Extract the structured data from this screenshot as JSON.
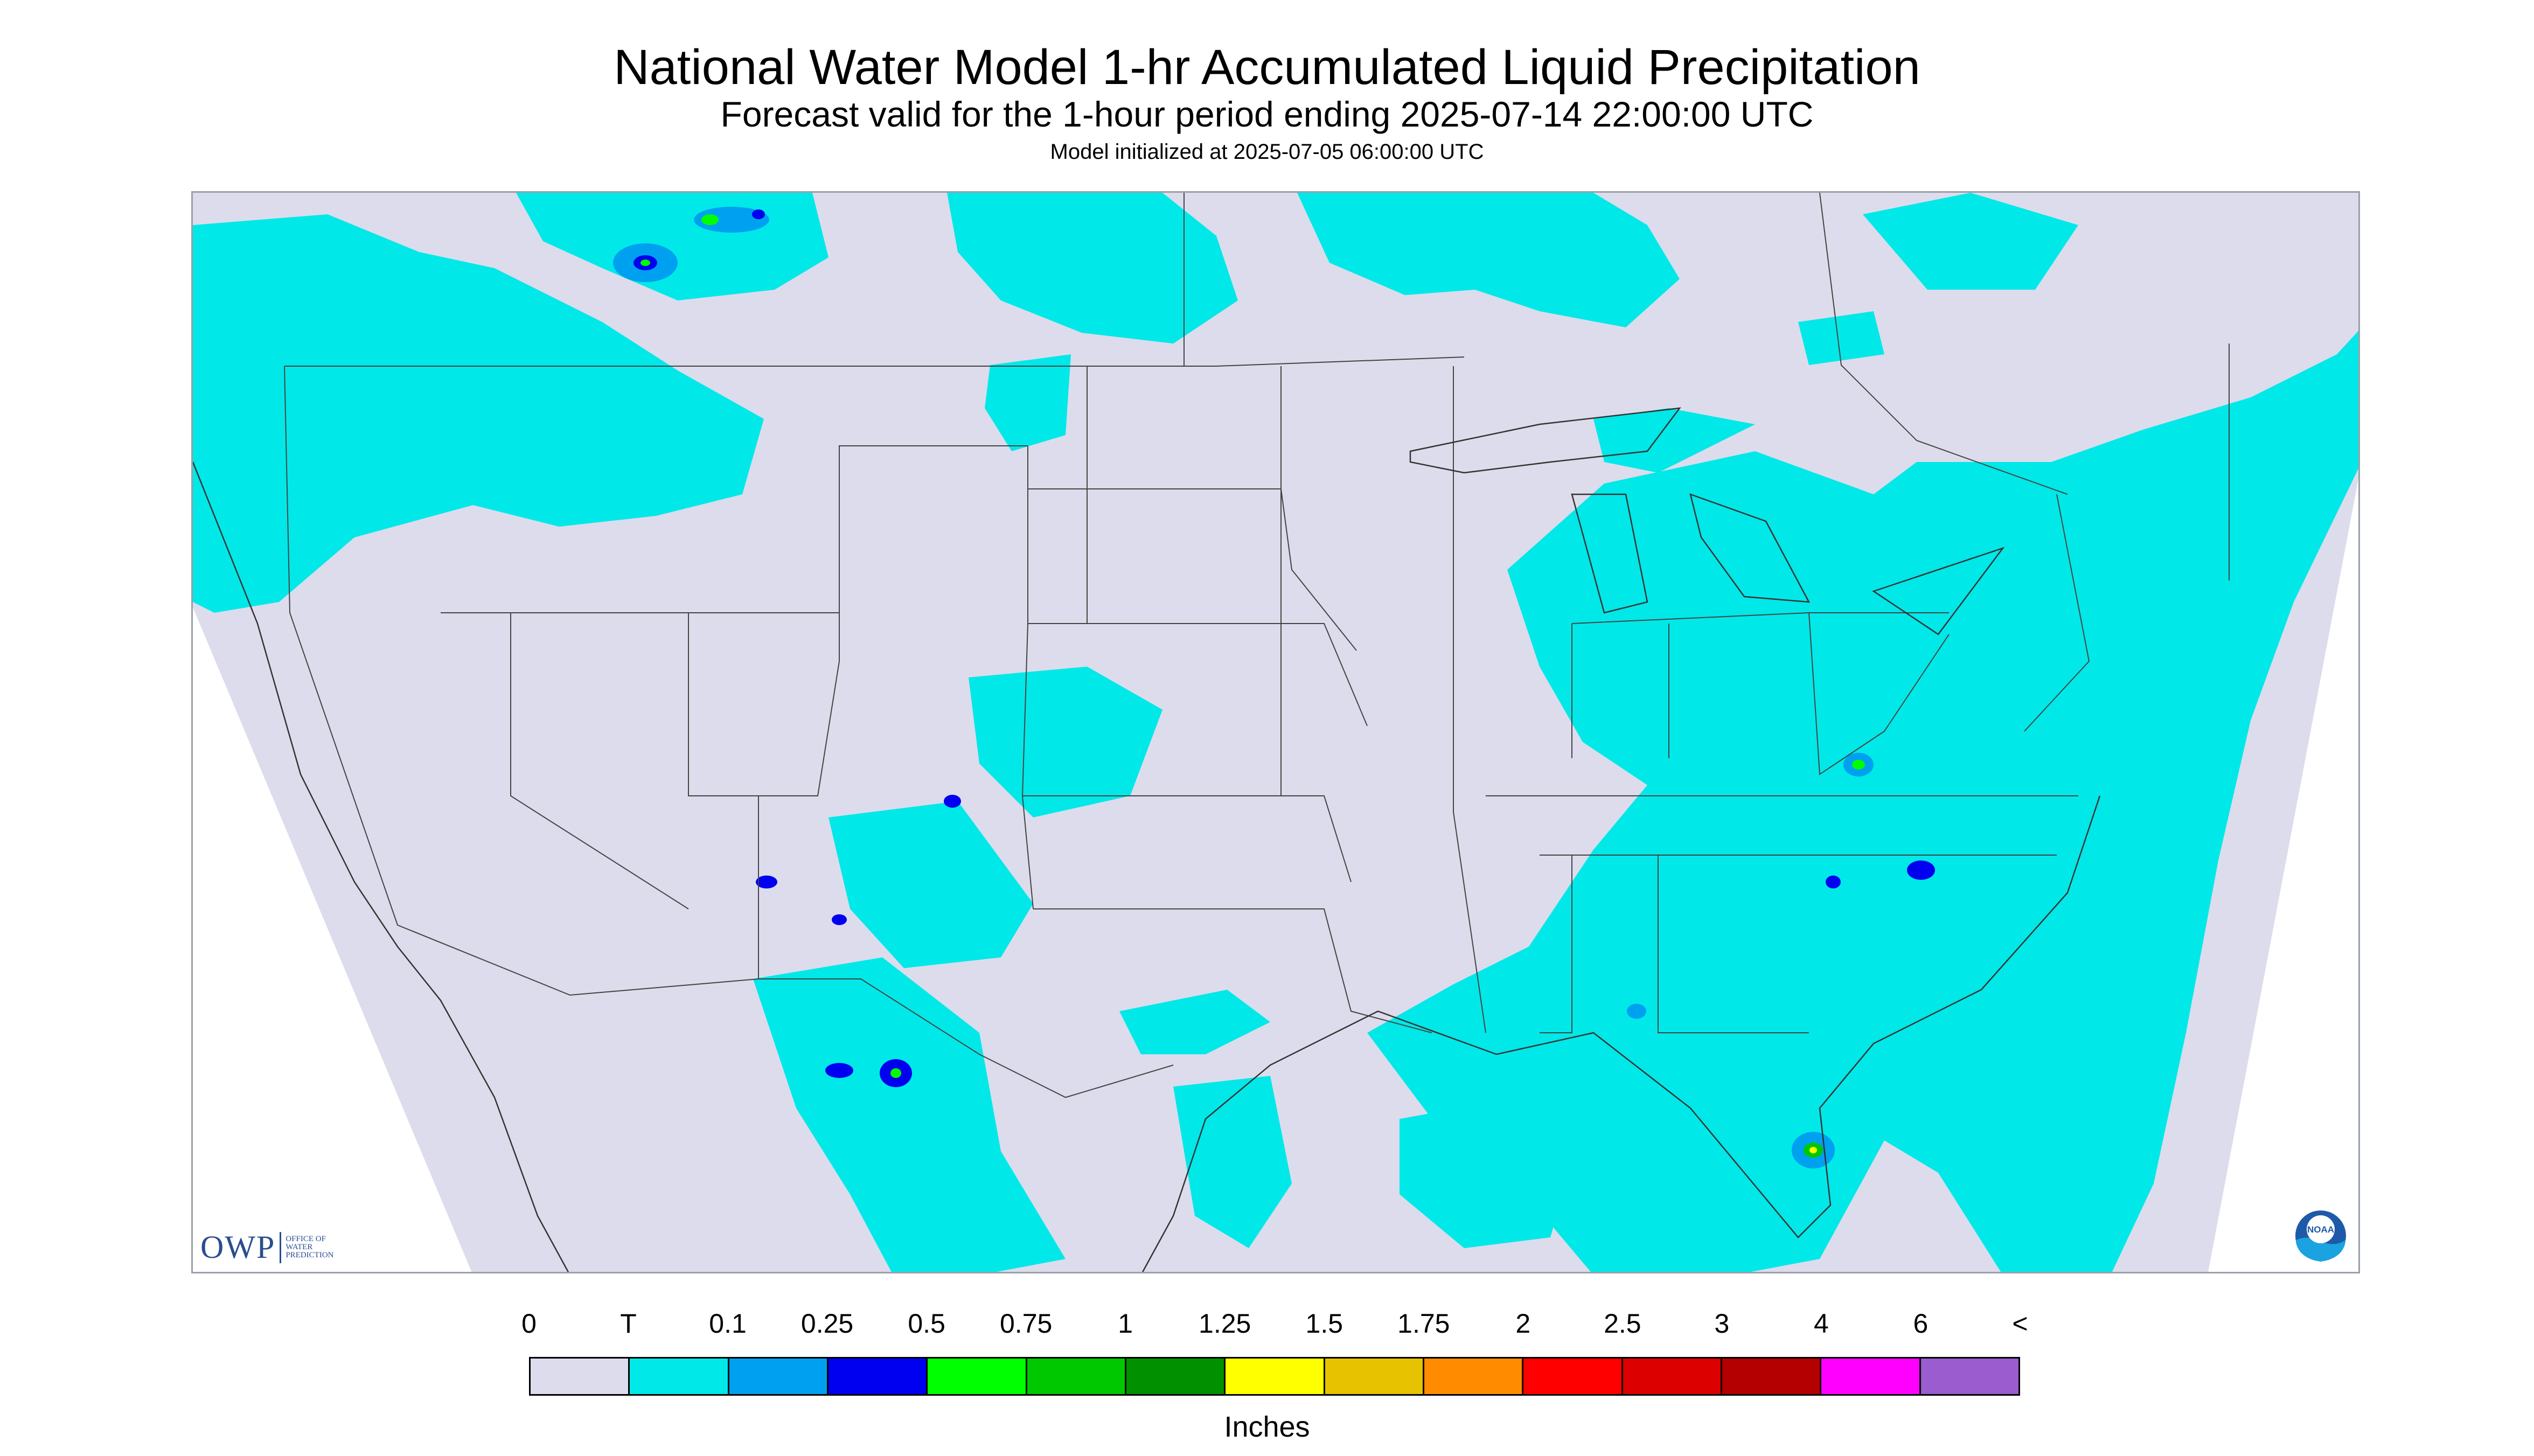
{
  "header": {
    "title": "National Water Model 1-hr Accumulated Liquid Precipitation",
    "subtitle": "Forecast valid for the 1-hour period ending 2025-07-14 22:00:00 UTC",
    "init": "Model initialized at 2025-07-05 06:00:00 UTC"
  },
  "map": {
    "region": "Continental United States",
    "background_color": "#dcdcec",
    "light_precip_color": "#00e8e8",
    "heavy_cells": [
      {
        "location": "Southern Alberta",
        "level": "0.5"
      },
      {
        "location": "Virginia",
        "level": "0.5"
      },
      {
        "location": "North Carolina coast",
        "level": "0.5"
      },
      {
        "location": "Southeast Florida",
        "level": "0.75"
      },
      {
        "location": "Northern Mexico (Sonora)",
        "level": "0.5"
      },
      {
        "location": "Colorado",
        "level": "0.25"
      },
      {
        "location": "Arizona",
        "level": "0.25"
      }
    ]
  },
  "logos": {
    "owp_mark": "OWP",
    "owp_text_1": "OFFICE OF",
    "owp_text_2": "WATER",
    "owp_text_3": "PREDICTION",
    "noaa_text": "NOAA"
  },
  "legend": {
    "labels": [
      "0",
      "T",
      "0.1",
      "0.25",
      "0.5",
      "0.75",
      "1",
      "1.25",
      "1.5",
      "1.75",
      "2",
      "2.5",
      "3",
      "4",
      "6",
      "<"
    ],
    "colors": [
      "#dcdcec",
      "#00e8e8",
      "#00a0f0",
      "#0000f0",
      "#00ff00",
      "#00c800",
      "#009000",
      "#ffff00",
      "#e6c200",
      "#ff8c00",
      "#ff0000",
      "#dc0000",
      "#b40000",
      "#ff00ff",
      "#9b5ccf"
    ],
    "unit": "Inches"
  }
}
